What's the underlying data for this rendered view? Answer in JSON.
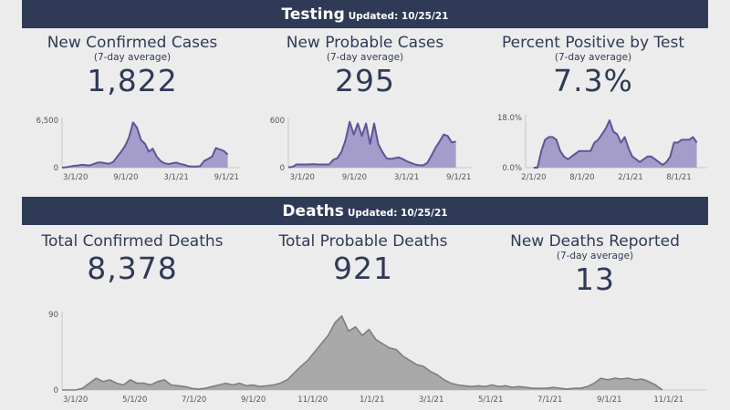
{
  "testing": {
    "title": "Testing",
    "updated": "Updated: 10/25/21"
  },
  "deaths": {
    "title": "Deaths",
    "updated": "Updated: 10/25/21"
  },
  "stats": {
    "new_confirmed": {
      "label": "New Confirmed Cases",
      "sub": "(7-day average)",
      "value": "1,822"
    },
    "new_probable": {
      "label": "New Probable Cases",
      "sub": "(7-day average)",
      "value": "295"
    },
    "percent_positive": {
      "label": "Percent Positive by Test",
      "sub": "(7-day average)",
      "value": "7.3%"
    },
    "total_confirmed_deaths": {
      "label": "Total Confirmed Deaths",
      "value": "8,378"
    },
    "total_probable_deaths": {
      "label": "Total Probable Deaths",
      "value": "921"
    },
    "new_deaths": {
      "label": "New Deaths Reported",
      "sub": "(7-day average)",
      "value": "13"
    }
  },
  "colors": {
    "banner": "#2e3a56",
    "purple_fill": "#a49dc9",
    "purple_line": "#5e5597",
    "gray_fill": "#a9a9a9",
    "gray_line": "#7e7e7e"
  },
  "chart_data": [
    {
      "id": "confirmed",
      "type": "area",
      "title": "New Confirmed Cases",
      "ylim": [
        0,
        6500
      ],
      "ytick_labels": [
        "0",
        "6,500"
      ],
      "x_unit": "months since 3/1/20",
      "xlim": [
        -1.6,
        19.6
      ],
      "xticks": [
        {
          "label": "3/1/20",
          "m": 0
        },
        {
          "label": "9/1/20",
          "m": 6
        },
        {
          "label": "3/1/21",
          "m": 12
        },
        {
          "label": "9/1/21",
          "m": 18
        }
      ],
      "start": -1.6,
      "step": 0.47,
      "values": [
        0,
        50,
        150,
        250,
        300,
        400,
        350,
        300,
        500,
        700,
        700,
        600,
        550,
        800,
        1500,
        2200,
        3000,
        4200,
        6200,
        5500,
        3800,
        3300,
        2200,
        2600,
        1500,
        900,
        600,
        500,
        600,
        700,
        500,
        400,
        200,
        150,
        150,
        200,
        900,
        1200,
        1500,
        2700,
        2500,
        2300,
        1800
      ]
    },
    {
      "id": "probable",
      "type": "area",
      "title": "New Probable Cases",
      "ylim": [
        0,
        600
      ],
      "ytick_labels": [
        "0",
        "600"
      ],
      "x_unit": "months since 3/1/20",
      "xlim": [
        -1.6,
        19.6
      ],
      "xticks": [
        {
          "label": "3/1/20",
          "m": 0
        },
        {
          "label": "9/1/20",
          "m": 6
        },
        {
          "label": "3/1/21",
          "m": 12
        },
        {
          "label": "9/1/21",
          "m": 18
        }
      ],
      "start": -1.6,
      "step": 0.47,
      "values": [
        5,
        10,
        40,
        40,
        40,
        40,
        45,
        40,
        40,
        40,
        40,
        100,
        120,
        200,
        350,
        580,
        420,
        560,
        400,
        560,
        300,
        560,
        300,
        200,
        120,
        110,
        120,
        130,
        110,
        80,
        60,
        40,
        30,
        30,
        60,
        150,
        250,
        330,
        420,
        400,
        320,
        330
      ]
    },
    {
      "id": "percent",
      "type": "area",
      "title": "Percent Positive by Test",
      "ylim": [
        0,
        18
      ],
      "ytick_labels": [
        "0.0%",
        "18.0%"
      ],
      "x_unit": "months since 2/1/20",
      "xlim": [
        -1,
        21.5
      ],
      "xticks": [
        {
          "label": "2/1/20",
          "m": 0
        },
        {
          "label": "8/1/20",
          "m": 6
        },
        {
          "label": "2/1/21",
          "m": 12
        },
        {
          "label": "8/1/21",
          "m": 18
        }
      ],
      "start": 0,
      "step": 0.47,
      "values": [
        0,
        0,
        6,
        10,
        11,
        11,
        10,
        6,
        4,
        3,
        4,
        5,
        6,
        6,
        6,
        6,
        9,
        10,
        12,
        14,
        17,
        13,
        12,
        9,
        11,
        7,
        4,
        3,
        2,
        3,
        4,
        4,
        3,
        2,
        1,
        2,
        4,
        9,
        9,
        10,
        10,
        10,
        11,
        9
      ]
    },
    {
      "id": "deaths",
      "type": "area",
      "title": "New Deaths Reported",
      "ylim": [
        0,
        90
      ],
      "ytick_labels": [
        "0",
        "90"
      ],
      "x_unit": "months since 3/1/20",
      "xlim": [
        -0.45,
        21.3
      ],
      "xticks": [
        {
          "label": "3/1/20",
          "m": 0
        },
        {
          "label": "5/1/20",
          "m": 2
        },
        {
          "label": "7/1/20",
          "m": 4
        },
        {
          "label": "9/1/20",
          "m": 6
        },
        {
          "label": "11/1/20",
          "m": 8
        },
        {
          "label": "1/1/21",
          "m": 10
        },
        {
          "label": "3/1/21",
          "m": 12
        },
        {
          "label": "5/1/21",
          "m": 14
        },
        {
          "label": "7/1/21",
          "m": 16
        },
        {
          "label": "9/1/21",
          "m": 18
        },
        {
          "label": "11/1/21",
          "m": 20
        }
      ],
      "start": -0.45,
      "step": 0.23,
      "values": [
        0,
        0,
        0,
        2,
        8,
        14,
        10,
        12,
        8,
        6,
        12,
        8,
        8,
        6,
        10,
        12,
        6,
        5,
        4,
        2,
        1,
        2,
        4,
        6,
        8,
        6,
        8,
        5,
        6,
        4,
        5,
        6,
        8,
        12,
        20,
        28,
        35,
        45,
        55,
        65,
        80,
        88,
        70,
        75,
        65,
        72,
        60,
        55,
        50,
        48,
        40,
        35,
        30,
        28,
        22,
        18,
        12,
        8,
        6,
        5,
        4,
        5,
        4,
        6,
        4,
        5,
        3,
        4,
        3,
        2,
        2,
        2,
        3,
        2,
        1,
        2,
        2,
        4,
        8,
        14,
        12,
        14,
        13,
        14,
        12,
        13,
        10,
        6,
        0
      ]
    }
  ]
}
